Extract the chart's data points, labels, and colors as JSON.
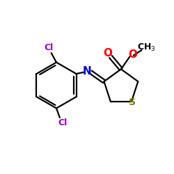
{
  "bg_color": "#ffffff",
  "bond_color": "#000000",
  "N_color": "#0000cc",
  "O_color": "#ff0000",
  "Cl_color": "#9900cc",
  "S_color": "#808000",
  "line_width": 1.6,
  "figsize": [
    2.5,
    2.5
  ],
  "dpi": 100,
  "xlim": [
    0,
    10
  ],
  "ylim": [
    0,
    10
  ]
}
